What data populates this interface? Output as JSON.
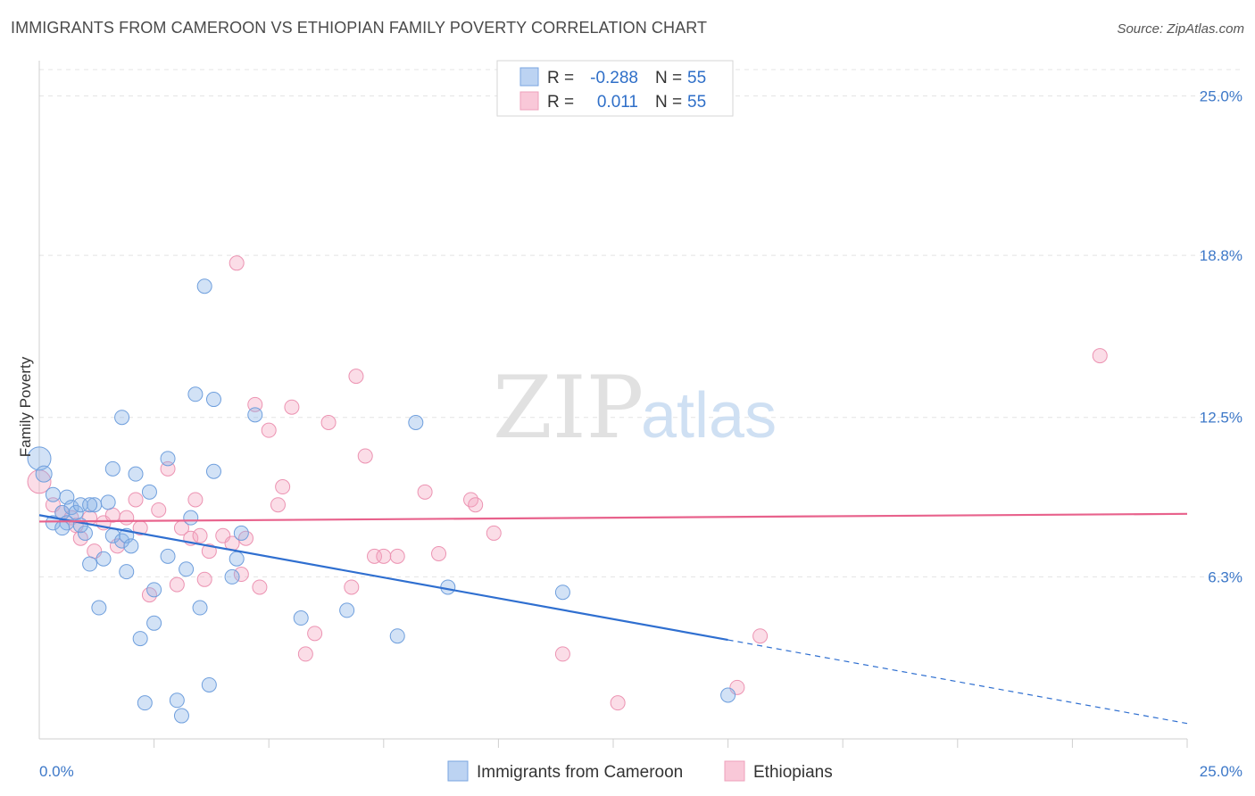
{
  "chart_data": {
    "type": "scatter",
    "title": "IMMIGRANTS FROM CAMEROON VS ETHIOPIAN FAMILY POVERTY CORRELATION CHART",
    "source": "Source: ZipAtlas.com",
    "ylabel": "Family Poverty",
    "xlim": [
      0,
      25
    ],
    "ylim": [
      0,
      26.3
    ],
    "y_ticks": [
      {
        "value": 6.3,
        "label": "6.3%"
      },
      {
        "value": 12.5,
        "label": "12.5%"
      },
      {
        "value": 18.8,
        "label": "18.8%"
      },
      {
        "value": 25.0,
        "label": "25.0%"
      }
    ],
    "x_tick_labels": {
      "left": "0.0%",
      "right": "25.0%"
    },
    "grid": true,
    "legend_position": "top-center",
    "watermark": {
      "part1": "ZIP",
      "part2": "atlas"
    },
    "series": [
      {
        "name": "Immigrants from Cameroon",
        "color": "#8ab4e8",
        "line_color": "#2f6fd0",
        "stat_r_label": "R =",
        "r": "-0.288",
        "n_label": "N =",
        "n": "55",
        "trend": {
          "x0": 0,
          "y0": 8.7,
          "x1": 15.0,
          "y1": 3.85,
          "dash_x1": 25.0,
          "dash_y1": 0.6
        },
        "points": [
          [
            0.0,
            10.9,
            13
          ],
          [
            0.1,
            10.3,
            9
          ],
          [
            0.3,
            9.5,
            8
          ],
          [
            0.3,
            8.4,
            8
          ],
          [
            0.5,
            8.8,
            8
          ],
          [
            0.6,
            8.4,
            8
          ],
          [
            0.6,
            9.4,
            8
          ],
          [
            0.7,
            9.0,
            8
          ],
          [
            0.8,
            8.8,
            8
          ],
          [
            0.9,
            9.1,
            8
          ],
          [
            1.0,
            8.0,
            8
          ],
          [
            1.1,
            6.8,
            8
          ],
          [
            1.2,
            9.1,
            8
          ],
          [
            1.3,
            5.1,
            8
          ],
          [
            1.4,
            7.0,
            8
          ],
          [
            1.5,
            9.2,
            8
          ],
          [
            1.6,
            7.9,
            8
          ],
          [
            1.6,
            10.5,
            8
          ],
          [
            1.8,
            7.7,
            8
          ],
          [
            1.9,
            6.5,
            8
          ],
          [
            1.9,
            7.9,
            8
          ],
          [
            2.0,
            7.5,
            8
          ],
          [
            2.1,
            10.3,
            8
          ],
          [
            2.2,
            3.9,
            8
          ],
          [
            2.3,
            1.4,
            8
          ],
          [
            2.4,
            9.6,
            8
          ],
          [
            2.5,
            4.5,
            8
          ],
          [
            2.5,
            5.8,
            8
          ],
          [
            2.8,
            7.1,
            8
          ],
          [
            3.0,
            1.5,
            8
          ],
          [
            3.1,
            0.9,
            8
          ],
          [
            3.2,
            6.6,
            8
          ],
          [
            3.3,
            8.6,
            8
          ],
          [
            3.4,
            13.4,
            8
          ],
          [
            3.5,
            5.1,
            8
          ],
          [
            3.6,
            17.6,
            8
          ],
          [
            3.7,
            2.1,
            8
          ],
          [
            3.8,
            13.2,
            8
          ],
          [
            3.8,
            10.4,
            8
          ],
          [
            4.2,
            6.3,
            8
          ],
          [
            4.3,
            7.0,
            8
          ],
          [
            4.4,
            8.0,
            8
          ],
          [
            4.7,
            12.6,
            8
          ],
          [
            5.7,
            4.7,
            8
          ],
          [
            6.7,
            5.0,
            8
          ],
          [
            7.8,
            4.0,
            8
          ],
          [
            8.2,
            12.3,
            8
          ],
          [
            8.9,
            5.9,
            8
          ],
          [
            11.4,
            5.7,
            8
          ],
          [
            15.0,
            1.7,
            8
          ],
          [
            1.8,
            12.5,
            8
          ],
          [
            0.9,
            8.3,
            8
          ],
          [
            1.1,
            9.1,
            8
          ],
          [
            0.5,
            8.2,
            8
          ],
          [
            2.8,
            10.9,
            8
          ]
        ]
      },
      {
        "name": "Ethiopians",
        "color": "#f4a6c0",
        "line_color": "#e8628c",
        "stat_r_label": "R =",
        "r": "0.011",
        "n_label": "N =",
        "n": "55",
        "trend": {
          "x0": 0,
          "y0": 8.45,
          "x1": 25.0,
          "y1": 8.75
        },
        "points": [
          [
            0.0,
            10.0,
            13
          ],
          [
            0.3,
            9.1,
            8
          ],
          [
            0.5,
            8.8,
            8
          ],
          [
            0.7,
            8.6,
            8
          ],
          [
            0.8,
            8.3,
            8
          ],
          [
            0.9,
            7.8,
            8
          ],
          [
            1.1,
            8.6,
            8
          ],
          [
            1.2,
            7.3,
            8
          ],
          [
            1.4,
            8.4,
            8
          ],
          [
            1.6,
            8.7,
            8
          ],
          [
            1.7,
            7.5,
            8
          ],
          [
            1.9,
            8.6,
            8
          ],
          [
            2.1,
            9.3,
            8
          ],
          [
            2.2,
            8.2,
            8
          ],
          [
            2.4,
            5.6,
            8
          ],
          [
            2.6,
            8.9,
            8
          ],
          [
            2.8,
            10.5,
            8
          ],
          [
            3.0,
            6.0,
            8
          ],
          [
            3.1,
            8.2,
            8
          ],
          [
            3.3,
            7.8,
            8
          ],
          [
            3.4,
            9.3,
            8
          ],
          [
            3.6,
            6.2,
            8
          ],
          [
            3.7,
            7.3,
            8
          ],
          [
            4.0,
            7.9,
            8
          ],
          [
            4.2,
            7.6,
            8
          ],
          [
            4.4,
            6.4,
            8
          ],
          [
            4.5,
            7.8,
            8
          ],
          [
            4.7,
            13.0,
            8
          ],
          [
            4.8,
            5.9,
            8
          ],
          [
            5.0,
            12.0,
            8
          ],
          [
            5.2,
            9.1,
            8
          ],
          [
            5.3,
            9.8,
            8
          ],
          [
            5.5,
            12.9,
            8
          ],
          [
            5.8,
            3.3,
            8
          ],
          [
            6.0,
            4.1,
            8
          ],
          [
            6.3,
            12.3,
            8
          ],
          [
            6.8,
            5.9,
            8
          ],
          [
            6.9,
            14.1,
            8
          ],
          [
            7.1,
            11.0,
            8
          ],
          [
            7.3,
            7.1,
            8
          ],
          [
            7.5,
            7.1,
            8
          ],
          [
            7.8,
            7.1,
            8
          ],
          [
            8.4,
            9.6,
            8
          ],
          [
            8.7,
            7.2,
            8
          ],
          [
            9.4,
            9.3,
            8
          ],
          [
            9.5,
            9.1,
            8
          ],
          [
            9.9,
            8.0,
            8
          ],
          [
            11.4,
            3.3,
            8
          ],
          [
            12.4,
            25.0,
            8
          ],
          [
            12.6,
            1.4,
            8
          ],
          [
            15.2,
            2.0,
            8
          ],
          [
            15.7,
            4.0,
            8
          ],
          [
            23.1,
            14.9,
            8
          ],
          [
            4.3,
            18.5,
            8
          ],
          [
            3.5,
            7.9,
            8
          ]
        ]
      }
    ]
  }
}
